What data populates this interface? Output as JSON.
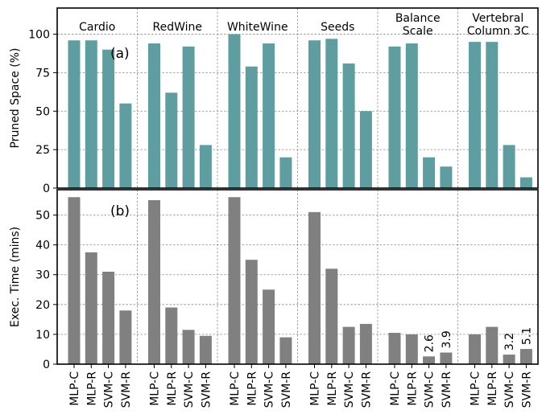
{
  "chart_data": [
    {
      "panel": "a",
      "type": "bar",
      "panel_label": "(a)",
      "ylabel": "Pruned Space (%)",
      "ylim": [
        0,
        117
      ],
      "yticks": [
        0,
        25,
        50,
        75,
        100
      ],
      "grid": true,
      "bar_color": "#5f9ea0",
      "groups": [
        {
          "name": "Cardio",
          "values": [
            96,
            96,
            90,
            55
          ]
        },
        {
          "name": "RedWine",
          "values": [
            94,
            62,
            92,
            28
          ]
        },
        {
          "name": "WhiteWine",
          "values": [
            100,
            79,
            94,
            20
          ]
        },
        {
          "name": "Seeds",
          "values": [
            96,
            97,
            81,
            50
          ]
        },
        {
          "name": "Balance\nScale",
          "values": [
            92,
            94,
            20,
            14
          ]
        },
        {
          "name": "Vertebral\nColumn 3C",
          "values": [
            95,
            95,
            28,
            7
          ]
        }
      ]
    },
    {
      "panel": "b",
      "type": "bar",
      "panel_label": "(b)",
      "ylabel": "Exec. Time (mins)",
      "ylim": [
        0,
        58.5
      ],
      "yticks": [
        0,
        10,
        20,
        30,
        40,
        50
      ],
      "grid": true,
      "bar_color": "#808080",
      "categories": [
        "MLP-C",
        "MLP-R",
        "SVM-C",
        "SVM-R"
      ],
      "groups": [
        {
          "name": "Cardio",
          "values": [
            56,
            37.5,
            31,
            18
          ]
        },
        {
          "name": "RedWine",
          "values": [
            55,
            19,
            11.5,
            9.5
          ]
        },
        {
          "name": "WhiteWine",
          "values": [
            56,
            35,
            25,
            9
          ]
        },
        {
          "name": "Seeds",
          "values": [
            51,
            32,
            12.5,
            13.5
          ]
        },
        {
          "name": "Balance Scale",
          "values": [
            10.5,
            10,
            2.6,
            3.9
          ],
          "labels": [
            null,
            null,
            "2.6",
            "3.9"
          ]
        },
        {
          "name": "Vertebral Column 3C",
          "values": [
            10,
            12.5,
            3.2,
            5.1
          ],
          "labels": [
            null,
            null,
            "3.2",
            "5.1"
          ]
        }
      ]
    }
  ]
}
